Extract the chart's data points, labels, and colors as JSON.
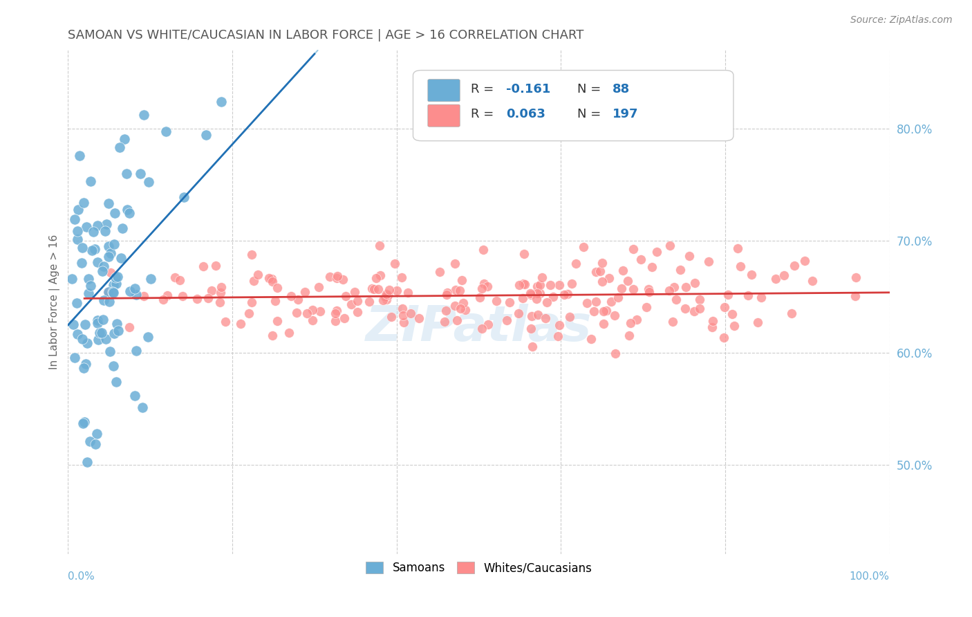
{
  "title": "SAMOAN VS WHITE/CAUCASIAN IN LABOR FORCE | AGE > 16 CORRELATION CHART",
  "source": "Source: ZipAtlas.com",
  "ylabel": "In Labor Force | Age > 16",
  "y_ticks": [
    "50.0%",
    "60.0%",
    "70.0%",
    "80.0%"
  ],
  "y_tick_vals": [
    0.5,
    0.6,
    0.7,
    0.8
  ],
  "x_ticks": [
    0.0,
    0.2,
    0.4,
    0.6,
    0.8,
    1.0
  ],
  "xlim": [
    0.0,
    1.0
  ],
  "ylim": [
    0.42,
    0.87
  ],
  "blue_R": -0.161,
  "blue_N": 88,
  "pink_R": 0.063,
  "pink_N": 197,
  "blue_color": "#6baed6",
  "pink_color": "#fc8d8d",
  "blue_line_color": "#2171b5",
  "pink_line_color": "#d63b3b",
  "blue_dashed_color": "#9ecae1",
  "legend_label_blue": "Samoans",
  "legend_label_pink": "Whites/Caucasians",
  "watermark": "ZIPatlas",
  "background_color": "#ffffff",
  "grid_color": "#cccccc",
  "title_color": "#555555",
  "axis_label_color": "#6baed6"
}
